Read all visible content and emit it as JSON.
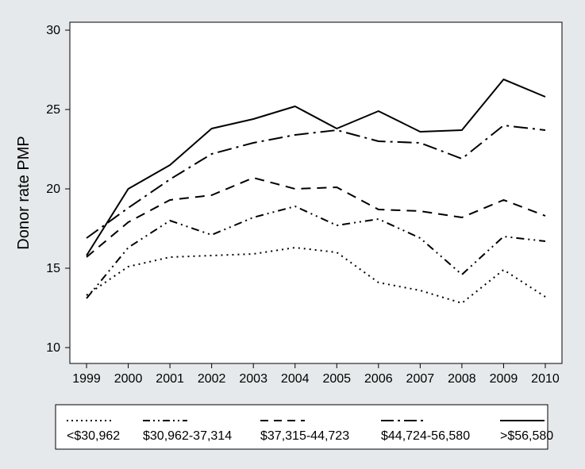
{
  "chart": {
    "type": "line",
    "outer_bg": "#e6e9eb",
    "plot_bg": "#ffffff",
    "frame_color": "#000000",
    "frame_stroke": 1,
    "tick_label_fontsize": 16,
    "ylabel": "Donor rate PMP",
    "ylabel_fontsize": 20,
    "ylim": [
      9,
      30.5
    ],
    "yticks": [
      10,
      15,
      20,
      25,
      30
    ],
    "xlim": [
      1998.6,
      2010.4
    ],
    "xticks": [
      1999,
      2000,
      2001,
      2002,
      2003,
      2004,
      2005,
      2006,
      2007,
      2008,
      2009,
      2010
    ],
    "series": [
      {
        "name": "<$30,962",
        "dash": "dot-fine",
        "y": [
          13.3,
          15.1,
          15.7,
          15.8,
          15.9,
          16.3,
          16.0,
          14.1,
          13.6,
          12.8,
          14.9,
          13.2
        ]
      },
      {
        "name": "$30,962-37,314",
        "dash": "dash-dot-dot",
        "y": [
          13.1,
          16.3,
          18.0,
          17.1,
          18.2,
          18.9,
          17.7,
          18.1,
          16.9,
          14.6,
          17.0,
          16.7
        ]
      },
      {
        "name": "$37,315-44,723",
        "dash": "dash-medium",
        "y": [
          15.7,
          17.9,
          19.3,
          19.6,
          20.7,
          20.0,
          20.1,
          18.7,
          18.6,
          18.2,
          19.3,
          18.3
        ]
      },
      {
        "name": "$44,724-56,580",
        "dash": "long-dash-dot",
        "y": [
          16.9,
          18.8,
          20.6,
          22.2,
          22.9,
          23.4,
          23.7,
          23.0,
          22.9,
          21.9,
          24.0,
          23.7
        ]
      },
      {
        "name": ">$56,580",
        "dash": "solid",
        "y": [
          15.8,
          20.0,
          21.5,
          23.8,
          24.4,
          25.2,
          23.8,
          24.9,
          23.6,
          23.7,
          26.9,
          25.8
        ]
      }
    ],
    "line_color": "#000000",
    "line_width": 2.0,
    "legend": {
      "border_color": "#000000",
      "bg": "#ffffff",
      "swatch_width": 56,
      "fontsize": 16
    }
  }
}
